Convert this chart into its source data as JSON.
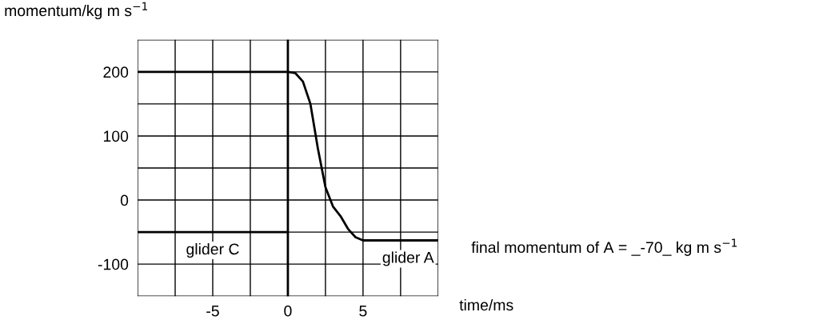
{
  "chart_data": {
    "type": "line",
    "ylabel": "momentum/kg m s$^{−1}$",
    "xlabel": "time/ms",
    "series": [
      {
        "name": "glider C",
        "color": "#000000",
        "x": [
          -10,
          0
        ],
        "values": [
          -50,
          -50
        ]
      },
      {
        "name": "glider A",
        "color": "#000000",
        "x": [
          -10,
          0,
          0.5,
          1,
          1.5,
          2,
          2.5,
          3,
          3.5,
          4,
          4.5,
          5,
          6,
          10
        ],
        "values": [
          200,
          200,
          198,
          185,
          150,
          80,
          20,
          -10,
          -25,
          -45,
          -58,
          -63,
          -63,
          -63
        ]
      }
    ],
    "xlim": [
      -10,
      10
    ],
    "xticks": [
      {
        "value": -10,
        "label": null
      },
      {
        "value": -7.5,
        "label": null
      },
      -5,
      {
        "value": -2.5,
        "label": null
      },
      0,
      {
        "value": 2.5,
        "label": null
      },
      5,
      {
        "value": 7.5,
        "label": null
      },
      {
        "value": 10,
        "label": null
      }
    ],
    "ylim": [
      -150,
      250
    ],
    "yticks": [
      {
        "value": -150,
        "label": null
      },
      -100,
      {
        "value": -50,
        "label": null
      },
      0,
      {
        "value": 50,
        "label": null
      },
      100,
      {
        "value": 150,
        "label": null
      },
      200,
      {
        "value": 250,
        "label": null
      }
    ],
    "grid": true,
    "ref_lines": [
      {
        "axis": "x",
        "value": 0,
        "color": "#000000"
      }
    ],
    "annotations": [
      "final momentum of A = _-70_ kg m s$^{−1}$"
    ]
  }
}
